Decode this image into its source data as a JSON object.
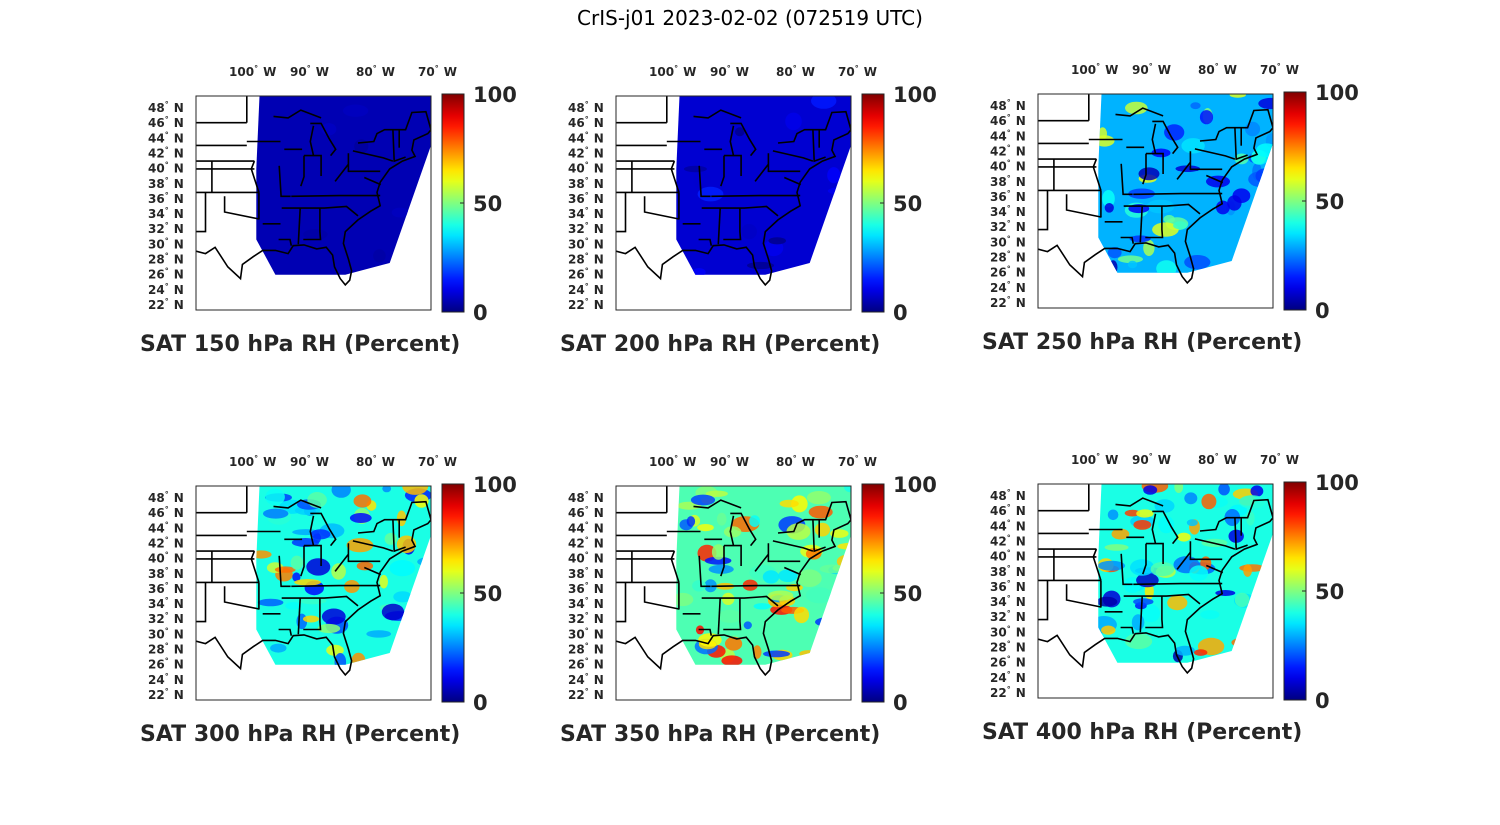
{
  "title": "CrIS-j01 2023-02-02 (072519 UTC)",
  "colormap": "jet",
  "colorbar": {
    "ticks": [
      100,
      50,
      0
    ],
    "range": [
      0,
      100
    ]
  },
  "map": {
    "lon_ticks": [
      {
        "num": "100",
        "deg": "°",
        "hem": "W"
      },
      {
        "num": "90",
        "deg": "°",
        "hem": "W"
      },
      {
        "num": "80",
        "deg": "°",
        "hem": "W"
      },
      {
        "num": "70",
        "deg": "°",
        "hem": "W"
      }
    ],
    "lat_ticks": [
      {
        "num": "48",
        "deg": "°",
        "hem": "N"
      },
      {
        "num": "46",
        "deg": "°",
        "hem": "N"
      },
      {
        "num": "44",
        "deg": "°",
        "hem": "N"
      },
      {
        "num": "42",
        "deg": "°",
        "hem": "N"
      },
      {
        "num": "40",
        "deg": "°",
        "hem": "N"
      },
      {
        "num": "38",
        "deg": "°",
        "hem": "N"
      },
      {
        "num": "36",
        "deg": "°",
        "hem": "N"
      },
      {
        "num": "34",
        "deg": "°",
        "hem": "N"
      },
      {
        "num": "32",
        "deg": "°",
        "hem": "N"
      },
      {
        "num": "30",
        "deg": "°",
        "hem": "N"
      },
      {
        "num": "28",
        "deg": "°",
        "hem": "N"
      },
      {
        "num": "26",
        "deg": "°",
        "hem": "N"
      },
      {
        "num": "24",
        "deg": "°",
        "hem": "N"
      },
      {
        "num": "22",
        "deg": "°",
        "hem": "N"
      }
    ]
  },
  "panels": [
    {
      "label": "SAT 150 hPa RH (Percent)",
      "level_hpa": 150,
      "mean_rh_percent": 5,
      "variability": 0.05
    },
    {
      "label": "SAT 200 hPa RH (Percent)",
      "level_hpa": 200,
      "mean_rh_percent": 8,
      "variability": 0.1
    },
    {
      "label": "SAT 250 hPa RH (Percent)",
      "level_hpa": 250,
      "mean_rh_percent": 30,
      "variability": 0.35
    },
    {
      "label": "SAT 300 hPa RH (Percent)",
      "level_hpa": 300,
      "mean_rh_percent": 40,
      "variability": 0.45
    },
    {
      "label": "SAT 350 hPa RH (Percent)",
      "level_hpa": 350,
      "mean_rh_percent": 45,
      "variability": 0.5
    },
    {
      "label": "SAT 400 hPa RH (Percent)",
      "level_hpa": 400,
      "mean_rh_percent": 40,
      "variability": 0.5
    }
  ]
}
